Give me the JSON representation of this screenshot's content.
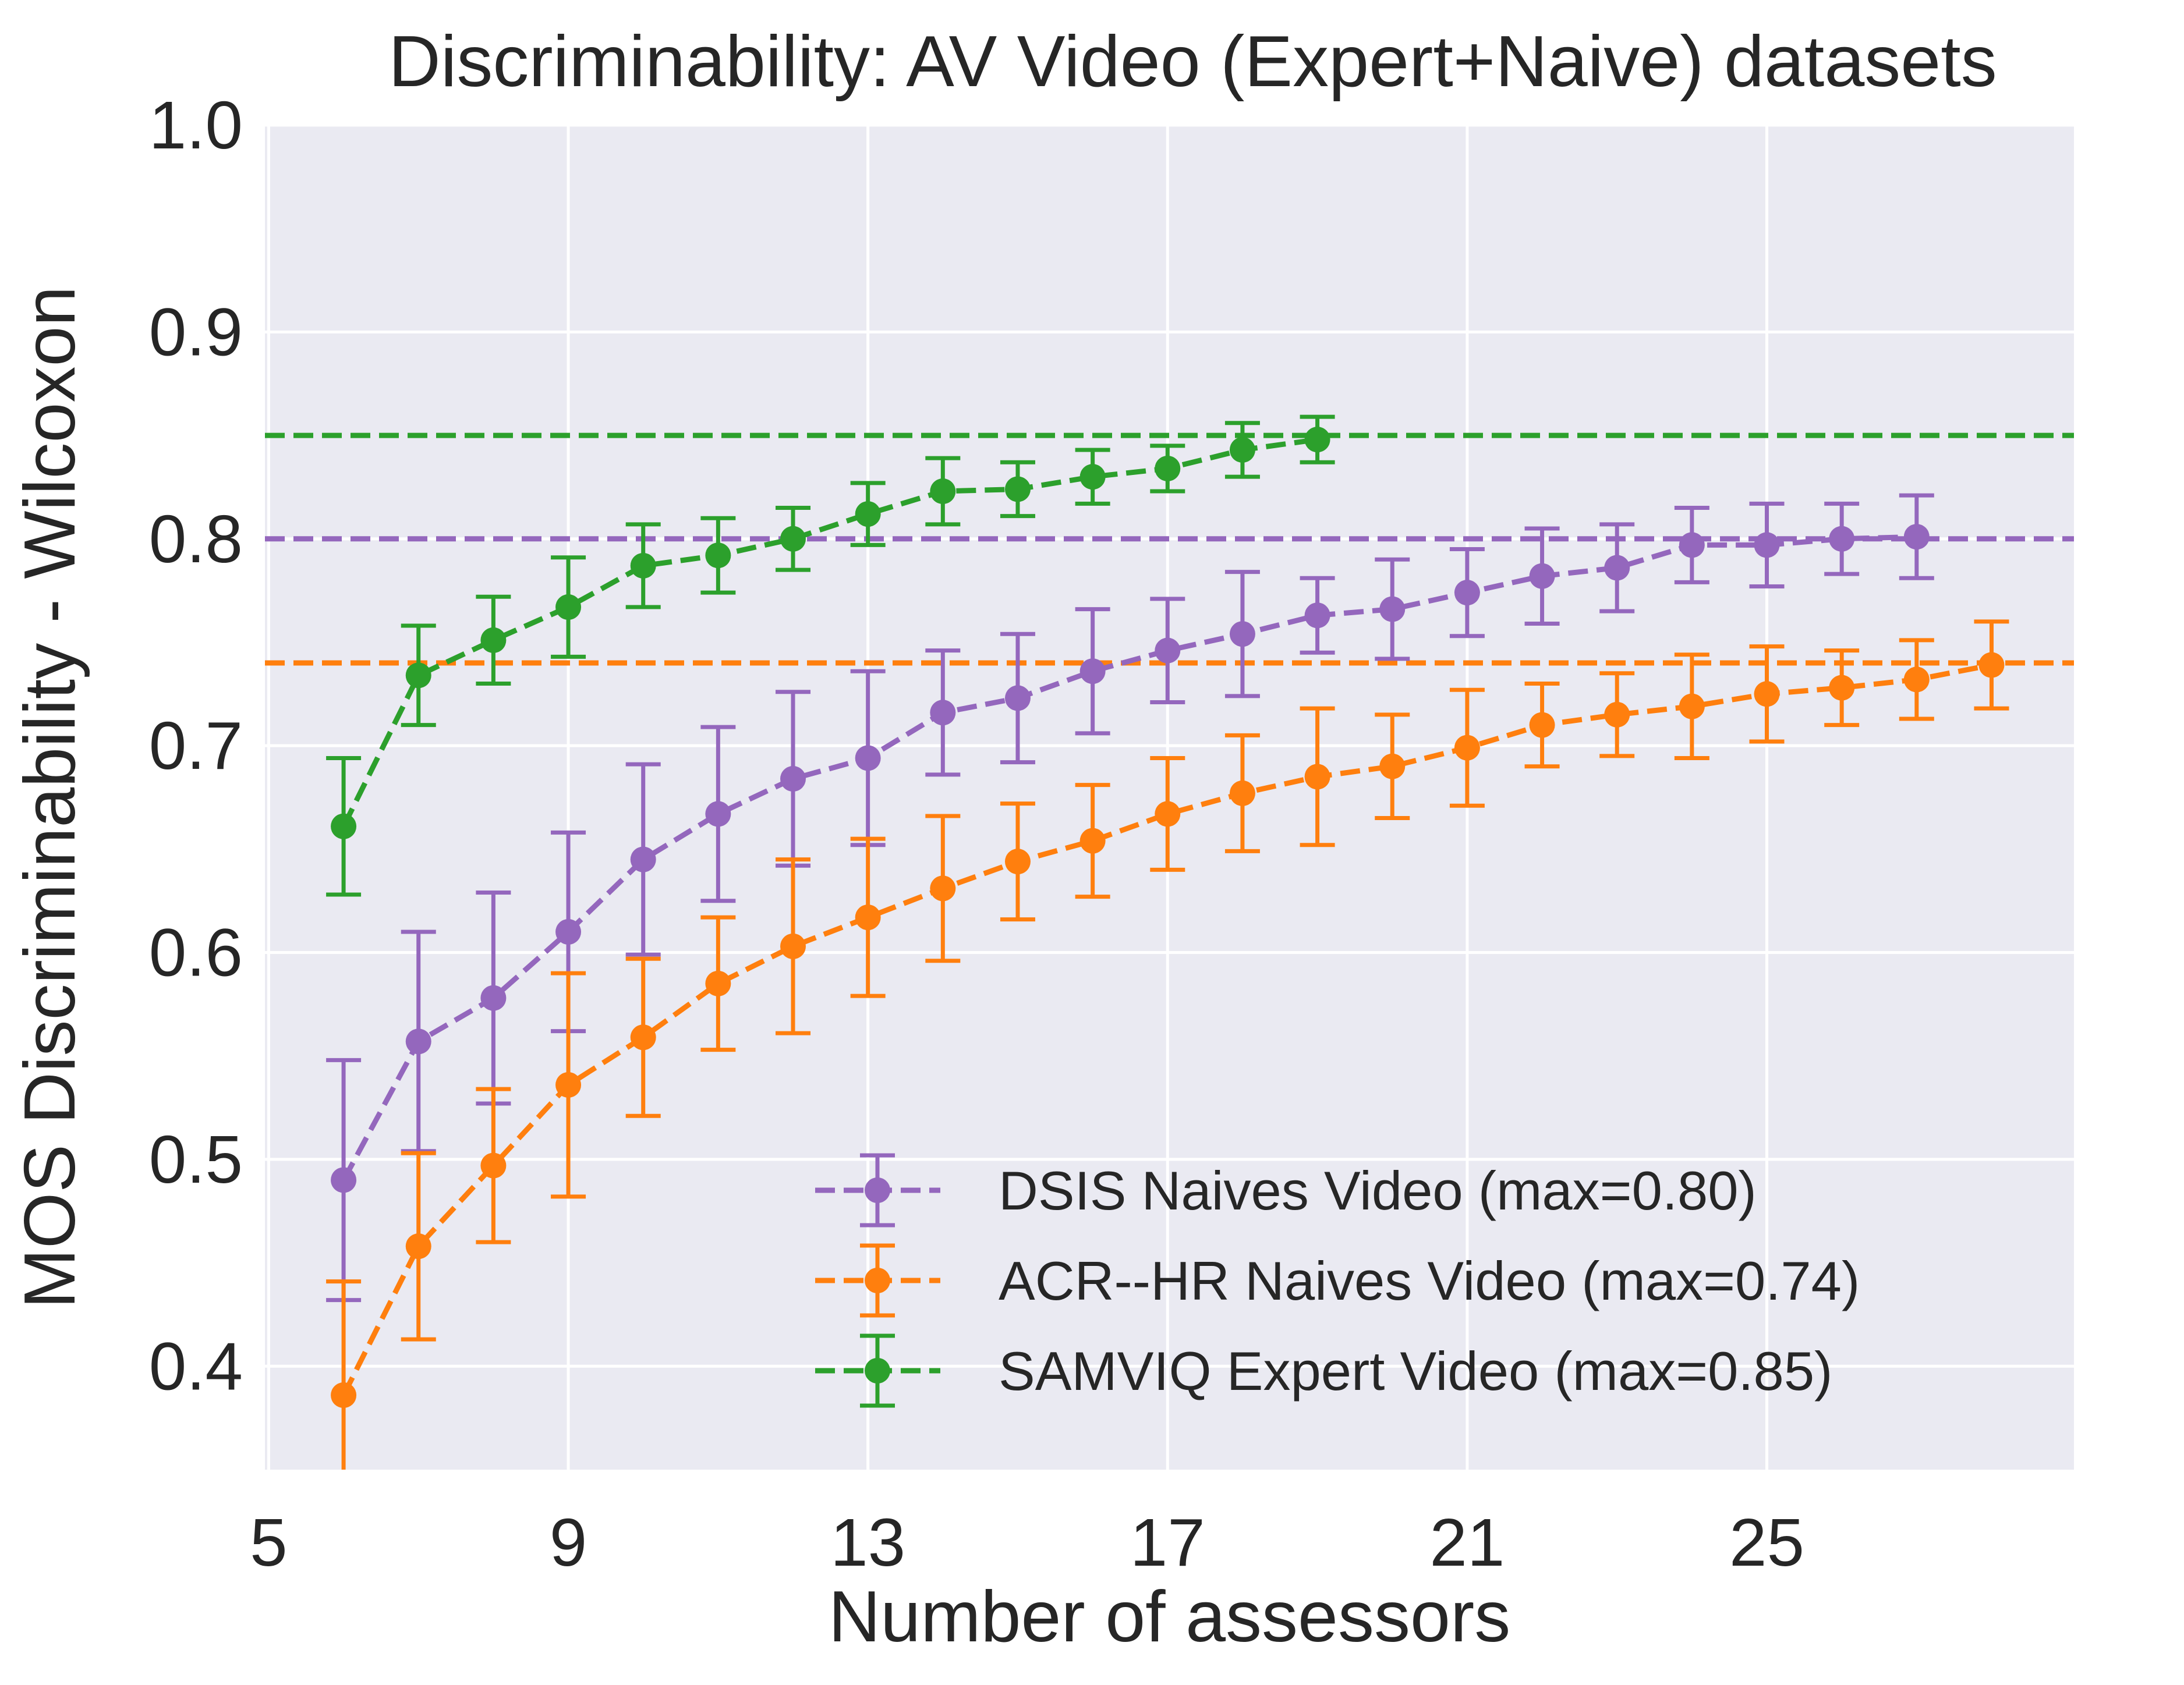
{
  "chart_data": {
    "type": "line",
    "title": "Discriminability: AV Video (Expert+Naive) datasets",
    "xlabel": "Number of assessors",
    "ylabel": "MOS Discriminability - Wilcoxon",
    "xlim": [
      4.95,
      29.1
    ],
    "ylim": [
      0.35,
      1.0
    ],
    "xticks": [
      5,
      9,
      13,
      17,
      21,
      25
    ],
    "xtick_labels": [
      "5",
      "9",
      "13",
      "17",
      "21",
      "25"
    ],
    "yticks": [
      0.4,
      0.5,
      0.6,
      0.7,
      0.8,
      0.9,
      1.0
    ],
    "ytick_labels": [
      "0.4",
      "0.5",
      "0.6",
      "0.7",
      "0.8",
      "0.9",
      "1.0"
    ],
    "grid": true,
    "legend_position": "lower-right",
    "series": [
      {
        "name": "DSIS Naives Video (max=0.80)",
        "color": "#9467bd",
        "max": 0.8,
        "x": [
          6,
          7,
          8,
          9,
          10,
          11,
          12,
          13,
          14,
          15,
          16,
          17,
          18,
          19,
          20,
          21,
          22,
          23,
          24,
          25,
          26,
          27
        ],
        "y": [
          0.49,
          0.557,
          0.578,
          0.61,
          0.645,
          0.667,
          0.684,
          0.694,
          0.716,
          0.723,
          0.736,
          0.746,
          0.754,
          0.763,
          0.766,
          0.774,
          0.782,
          0.786,
          0.797,
          0.797,
          0.8,
          0.801
        ],
        "err": [
          0.058,
          0.053,
          0.051,
          0.048,
          0.046,
          0.042,
          0.042,
          0.042,
          0.03,
          0.031,
          0.03,
          0.025,
          0.03,
          0.018,
          0.024,
          0.021,
          0.023,
          0.021,
          0.018,
          0.02,
          0.017,
          0.02
        ]
      },
      {
        "name": "ACR--HR Naives Video (max=0.74)",
        "color": "#ff7f0e",
        "max": 0.74,
        "x": [
          6,
          7,
          8,
          9,
          10,
          11,
          12,
          13,
          14,
          15,
          16,
          17,
          18,
          19,
          20,
          21,
          22,
          23,
          24,
          25,
          26,
          27,
          28
        ],
        "y": [
          0.386,
          0.458,
          0.497,
          0.536,
          0.559,
          0.585,
          0.603,
          0.617,
          0.631,
          0.644,
          0.654,
          0.667,
          0.677,
          0.685,
          0.69,
          0.699,
          0.71,
          0.715,
          0.719,
          0.725,
          0.728,
          0.732,
          0.739
        ],
        "err": [
          0.055,
          0.045,
          0.037,
          0.054,
          0.038,
          0.032,
          0.042,
          0.038,
          0.035,
          0.028,
          0.027,
          0.027,
          0.028,
          0.033,
          0.025,
          0.028,
          0.02,
          0.02,
          0.025,
          0.023,
          0.018,
          0.019,
          0.021
        ]
      },
      {
        "name": "SAMVIQ Expert Video (max=0.85)",
        "color": "#2ca02c",
        "max": 0.85,
        "x": [
          6,
          7,
          8,
          9,
          10,
          11,
          12,
          13,
          14,
          15,
          16,
          17,
          18,
          19
        ],
        "y": [
          0.661,
          0.734,
          0.751,
          0.767,
          0.787,
          0.792,
          0.8,
          0.812,
          0.823,
          0.824,
          0.83,
          0.834,
          0.843,
          0.848
        ],
        "err": [
          0.033,
          0.024,
          0.021,
          0.024,
          0.02,
          0.018,
          0.015,
          0.015,
          0.016,
          0.013,
          0.013,
          0.011,
          0.013,
          0.011
        ]
      }
    ]
  }
}
